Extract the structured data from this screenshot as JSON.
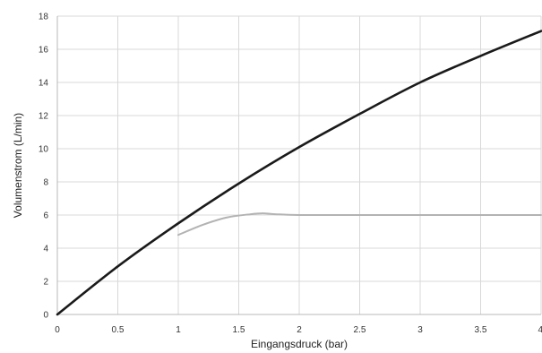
{
  "chart_data": {
    "type": "line",
    "title": "",
    "xlabel": "Eingangsdruck (bar)",
    "ylabel": "Volumenstrom (L/min)",
    "xlim": [
      0,
      4
    ],
    "ylim": [
      0,
      18
    ],
    "xticks": [
      0,
      0.5,
      1,
      1.5,
      2,
      2.5,
      3,
      3.5,
      4
    ],
    "xtick_labels": [
      "0",
      "0.5",
      "1",
      "1.5",
      "2",
      "2.5",
      "3",
      "3.5",
      "4"
    ],
    "yticks": [
      0,
      2,
      4,
      6,
      8,
      10,
      12,
      14,
      16,
      18
    ],
    "ytick_labels": [
      "0",
      "2",
      "4",
      "6",
      "8",
      "10",
      "12",
      "14",
      "16",
      "18"
    ],
    "grid": true,
    "legend": "none",
    "series": [
      {
        "color": "#1a1a1a",
        "x": [
          0,
          0.5,
          1,
          1.5,
          2,
          2.5,
          3,
          3.5,
          4
        ],
        "y": [
          0,
          2.9,
          5.5,
          7.9,
          10.1,
          12.1,
          14.0,
          15.6,
          17.1
        ]
      },
      {
        "color": "#b3b3b3",
        "x": [
          1,
          1.2,
          1.4,
          1.6,
          1.7,
          1.8,
          2,
          2.5,
          3,
          3.5,
          4
        ],
        "y": [
          4.8,
          5.4,
          5.85,
          6.05,
          6.1,
          6.05,
          6.0,
          6.0,
          6.0,
          6.0,
          6.0
        ]
      }
    ]
  }
}
